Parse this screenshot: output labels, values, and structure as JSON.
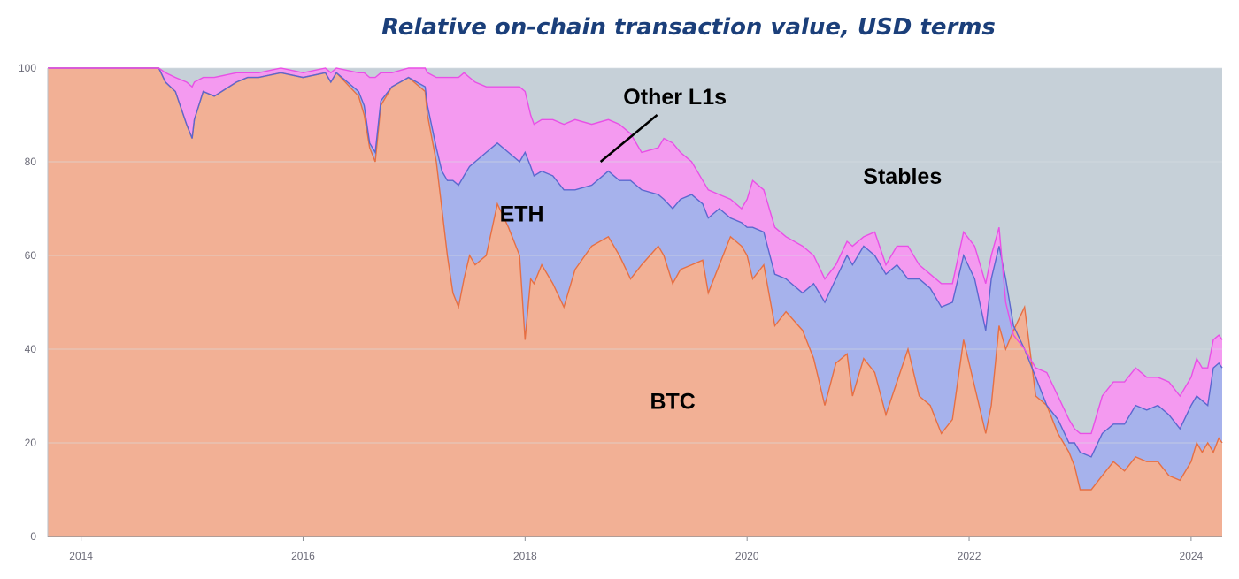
{
  "chart_data": {
    "type": "area",
    "title": "Relative on-chain transaction value, USD terms",
    "xlabel": "",
    "ylabel": "",
    "stacking": "100% stacked (cumulative boundaries shown)",
    "ylim": [
      0,
      100
    ],
    "xlim": [
      2013.7,
      2024.28
    ],
    "y_ticks": [
      0,
      20,
      40,
      60,
      80,
      100
    ],
    "x_ticks": [
      2014,
      2016,
      2018,
      2020,
      2022,
      2024
    ],
    "x_tick_labels": [
      "2014",
      "2016",
      "2018",
      "2020",
      "2022",
      "2024"
    ],
    "grid": "horizontal",
    "legend": "none (inline area labels)",
    "area_labels": [
      {
        "name": "BTC",
        "x": 2019.33,
        "y": 29
      },
      {
        "name": "ETH",
        "x": 2017.97,
        "y": 69
      },
      {
        "name": "Other L1s",
        "x": 2019.35,
        "y": 94
      },
      {
        "name": "Stables",
        "x": 2021.4,
        "y": 77
      }
    ],
    "annotation": {
      "text": "Other L1s",
      "line_from": [
        2019.19,
        90
      ],
      "line_to": [
        2018.68,
        80
      ]
    },
    "colors": {
      "BTC": "#f2b095",
      "BTC_line": "#e66f43",
      "ETH": "#a6b2ec",
      "ETH_line": "#5b67cf",
      "Other L1s": "#f49af0",
      "Other_line": "#e94fe6",
      "Stables": "#c6d0d8",
      "grid": "#d7dde2",
      "title": "#1b3f7a"
    },
    "x": [
      2013.7,
      2014.0,
      2014.3,
      2014.5,
      2014.7,
      2014.76,
      2014.85,
      2014.95,
      2015.0,
      2015.02,
      2015.1,
      2015.2,
      2015.4,
      2015.5,
      2015.6,
      2015.8,
      2016.0,
      2016.2,
      2016.25,
      2016.3,
      2016.5,
      2016.55,
      2016.6,
      2016.65,
      2016.7,
      2016.8,
      2016.95,
      2017.1,
      2017.12,
      2017.2,
      2017.25,
      2017.3,
      2017.35,
      2017.4,
      2017.45,
      2017.5,
      2017.55,
      2017.65,
      2017.75,
      2017.85,
      2017.95,
      2018.0,
      2018.05,
      2018.08,
      2018.15,
      2018.25,
      2018.35,
      2018.45,
      2018.6,
      2018.75,
      2018.85,
      2018.95,
      2019.05,
      2019.2,
      2019.25,
      2019.33,
      2019.4,
      2019.5,
      2019.6,
      2019.65,
      2019.75,
      2019.85,
      2019.95,
      2020.0,
      2020.05,
      2020.15,
      2020.25,
      2020.35,
      2020.5,
      2020.6,
      2020.7,
      2020.8,
      2020.9,
      2020.95,
      2021.05,
      2021.15,
      2021.25,
      2021.35,
      2021.45,
      2021.55,
      2021.65,
      2021.75,
      2021.85,
      2021.95,
      2022.05,
      2022.15,
      2022.2,
      2022.27,
      2022.33,
      2022.4,
      2022.5,
      2022.6,
      2022.7,
      2022.8,
      2022.9,
      2022.95,
      2023.0,
      2023.1,
      2023.2,
      2023.3,
      2023.4,
      2023.5,
      2023.6,
      2023.7,
      2023.8,
      2023.9,
      2024.0,
      2024.05,
      2024.1,
      2024.15,
      2024.2,
      2024.25,
      2024.28
    ],
    "series": [
      {
        "name": "BTC",
        "values": [
          100,
          100,
          100,
          100,
          100,
          97,
          95,
          88,
          85,
          89,
          95,
          94,
          97,
          98,
          98,
          99,
          98,
          99,
          97,
          99,
          94,
          90,
          83,
          80,
          92,
          96,
          98,
          95,
          90,
          80,
          70,
          60,
          52,
          49,
          55,
          60,
          58,
          60,
          71,
          66,
          60,
          42,
          55,
          54,
          58,
          54,
          49,
          57,
          62,
          64,
          60,
          55,
          58,
          62,
          60,
          54,
          57,
          58,
          59,
          52,
          58,
          64,
          62,
          60,
          55,
          58,
          45,
          48,
          44,
          38,
          28,
          37,
          39,
          30,
          38,
          35,
          26,
          33,
          40,
          30,
          28,
          22,
          25,
          42,
          32,
          22,
          28,
          45,
          40,
          44,
          49,
          30,
          28,
          22,
          18,
          15,
          10,
          10,
          13,
          16,
          14,
          17,
          16,
          16,
          13,
          12,
          16,
          20,
          18,
          20,
          18,
          21,
          20
        ]
      },
      {
        "name": "ETH",
        "values": [
          100,
          100,
          100,
          100,
          100,
          97,
          95,
          88,
          85,
          89,
          95,
          94,
          97,
          98,
          98,
          99,
          98,
          99,
          97,
          99,
          95,
          92,
          84,
          82,
          93,
          96,
          98,
          96,
          92,
          83,
          78,
          76,
          76,
          75,
          77,
          79,
          80,
          82,
          84,
          82,
          80,
          82,
          79,
          77,
          78,
          77,
          74,
          74,
          75,
          78,
          76,
          76,
          74,
          73,
          72,
          70,
          72,
          73,
          71,
          68,
          70,
          68,
          67,
          66,
          66,
          65,
          56,
          55,
          52,
          54,
          50,
          55,
          60,
          58,
          62,
          60,
          56,
          58,
          55,
          55,
          53,
          49,
          50,
          60,
          55,
          44,
          55,
          62,
          55,
          45,
          40,
          34,
          28,
          25,
          20,
          20,
          18,
          17,
          22,
          24,
          24,
          28,
          27,
          28,
          26,
          23,
          28,
          30,
          29,
          28,
          36,
          37,
          36
        ]
      },
      {
        "name": "Other L1s",
        "values": [
          100,
          100,
          100,
          100,
          100,
          99,
          98,
          97,
          96,
          97,
          98,
          98,
          99,
          99,
          99,
          100,
          99,
          100,
          99,
          100,
          99,
          99,
          98,
          98,
          99,
          99,
          100,
          100,
          99,
          98,
          98,
          98,
          98,
          98,
          99,
          98,
          97,
          96,
          96,
          96,
          96,
          95,
          90,
          88,
          89,
          89,
          88,
          89,
          88,
          89,
          88,
          86,
          82,
          83,
          85,
          84,
          82,
          80,
          76,
          74,
          73,
          72,
          70,
          72,
          76,
          74,
          66,
          64,
          62,
          60,
          55,
          58,
          63,
          62,
          64,
          65,
          58,
          62,
          62,
          58,
          56,
          54,
          54,
          65,
          62,
          54,
          60,
          66,
          50,
          43,
          40,
          36,
          35,
          30,
          25,
          23,
          22,
          22,
          30,
          33,
          33,
          36,
          34,
          34,
          33,
          30,
          34,
          38,
          36,
          36,
          42,
          43,
          42
        ]
      }
    ],
    "residual_series": {
      "name": "Stables",
      "note": "fills remaining area up to 100"
    }
  }
}
